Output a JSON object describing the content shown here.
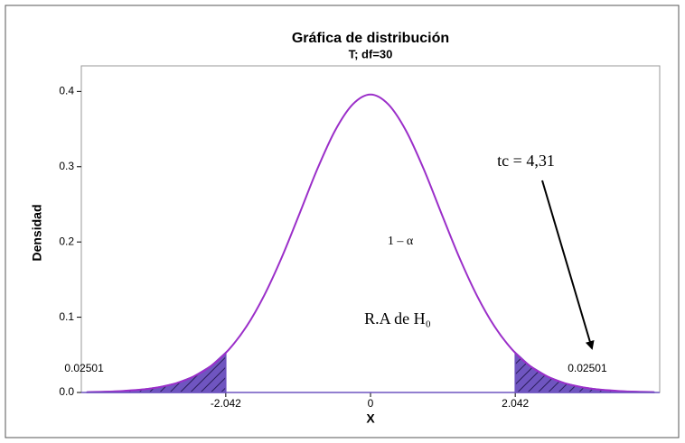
{
  "chart_data": {
    "type": "line",
    "title": "Gráfica de distribución",
    "subtitle": "T; df=30",
    "xlabel": "X",
    "ylabel": "Densidad",
    "x": [
      -4,
      -3.75,
      -3.5,
      -3.25,
      -3,
      -2.75,
      -2.5,
      -2.25,
      -2,
      -1.75,
      -1.5,
      -1.25,
      -1,
      -0.75,
      -0.5,
      -0.25,
      0,
      0.25,
      0.5,
      0.75,
      1,
      1.25,
      1.5,
      1.75,
      2,
      2.25,
      2.5,
      2.75,
      3,
      3.25,
      3.5,
      3.75,
      4
    ],
    "values": [
      0.0005,
      0.001,
      0.002,
      0.0037,
      0.0068,
      0.0121,
      0.0211,
      0.0353,
      0.0569,
      0.0877,
      0.129,
      0.18,
      0.238,
      0.297,
      0.348,
      0.383,
      0.396,
      0.383,
      0.348,
      0.297,
      0.238,
      0.18,
      0.129,
      0.0877,
      0.0569,
      0.0353,
      0.0211,
      0.0121,
      0.0068,
      0.0037,
      0.002,
      0.001,
      0.0005
    ],
    "color": "#9b2fc9",
    "shade_color": "#6f55c0",
    "shaded": [
      {
        "from": -4,
        "to": -2.042,
        "area": 0.02501
      },
      {
        "from": 2.042,
        "to": 4,
        "area": 0.02501
      }
    ],
    "xlim": [
      -4.08,
      4.08
    ],
    "xticks": [
      -2.042,
      0,
      2.042
    ],
    "ylim": [
      0,
      0.434
    ],
    "yticks": [
      {
        "value": 0,
        "label": "0.0"
      },
      0.1,
      0.2,
      0.3,
      0.4
    ],
    "annotations": [
      "1 – α",
      "R.A de H₀",
      "tc = 4,31"
    ]
  }
}
